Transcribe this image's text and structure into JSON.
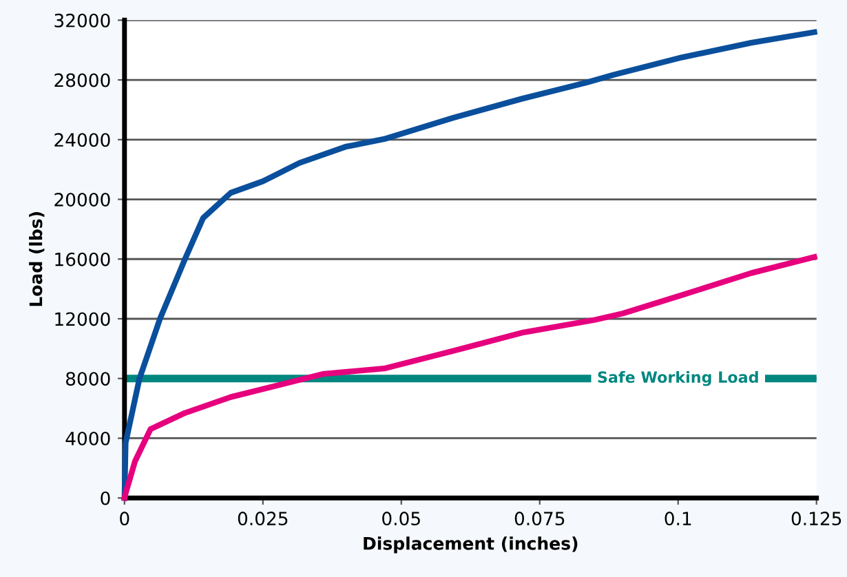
{
  "chart_data": {
    "type": "line",
    "xlabel": "Displacement (inches)",
    "ylabel": "Load (lbs)",
    "xlim": [
      0,
      0.125
    ],
    "ylim": [
      0,
      32000
    ],
    "xticks": [
      0,
      0.025,
      0.05,
      0.075,
      0.1,
      0.125
    ],
    "yticks": [
      0,
      4000,
      8000,
      12000,
      16000,
      20000,
      24000,
      28000,
      32000
    ],
    "grid": "y",
    "legend": false,
    "marker": "none",
    "line_style": "solid",
    "series": [
      {
        "color": "#0a4f9c",
        "x": [
          0,
          0.0002,
          0.0027,
          0.0064,
          0.0109,
          0.0142,
          0.0192,
          0.025,
          0.0316,
          0.0399,
          0.0469,
          0.0593,
          0.0718,
          0.0834,
          0.0883,
          0.1007,
          0.1132,
          0.1246
        ],
        "values": [
          0,
          3690,
          7990,
          11990,
          15980,
          18750,
          20440,
          21210,
          22440,
          23520,
          24040,
          25450,
          26740,
          27820,
          28340,
          29510,
          30490,
          31200
        ]
      },
      {
        "color": "#e6007e",
        "x": [
          0,
          0.0002,
          0.0019,
          0.0047,
          0.0109,
          0.0192,
          0.0275,
          0.0358,
          0.0469,
          0.0593,
          0.0718,
          0.085,
          0.09,
          0.1007,
          0.1132,
          0.1246
        ],
        "values": [
          0,
          300,
          2460,
          4610,
          5690,
          6760,
          7530,
          8300,
          8670,
          9840,
          11070,
          11930,
          12360,
          13590,
          15060,
          16140
        ]
      }
    ],
    "ref_lines": [
      {
        "axis": "y",
        "value": 8000,
        "label": "Safe Working Load",
        "color": "#00877f",
        "line_style": "solid"
      }
    ]
  }
}
